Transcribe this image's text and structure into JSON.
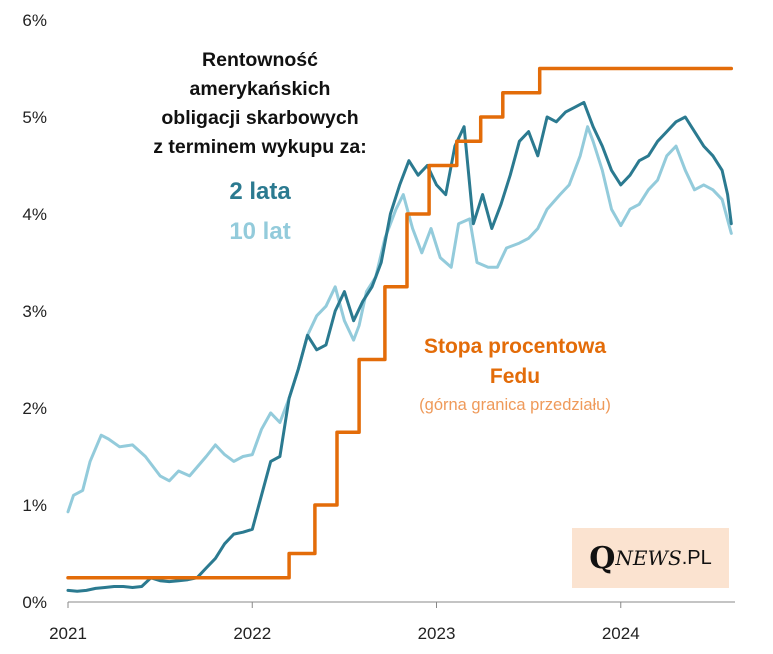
{
  "chart_data": {
    "type": "line",
    "title": "Rentowność amerykańskich obligacji skarbowych z terminem wykupu za:",
    "title_lines": [
      "Rentowność",
      "amerykańskich",
      "obligacji skarbowych",
      "z terminem wykupu za:"
    ],
    "xlabel": "",
    "ylabel": "",
    "xlim": [
      2021.0,
      2024.62
    ],
    "ylim": [
      0,
      6
    ],
    "x_ticks": [
      2021,
      2022,
      2023,
      2024
    ],
    "x_tick_labels": [
      "2021",
      "2022",
      "2023",
      "2024"
    ],
    "y_ticks": [
      0,
      1,
      2,
      3,
      4,
      5,
      6
    ],
    "y_tick_labels": [
      "0%",
      "1%",
      "2%",
      "3%",
      "4%",
      "5%",
      "6%"
    ],
    "grid": false,
    "series": [
      {
        "name": "10 lat",
        "label": "10 lat",
        "color": "#93cbdb",
        "x": [
          2021.0,
          2021.03,
          2021.08,
          2021.12,
          2021.18,
          2021.22,
          2021.28,
          2021.35,
          2021.42,
          2021.5,
          2021.55,
          2021.6,
          2021.66,
          2021.75,
          2021.8,
          2021.85,
          2021.9,
          2021.95,
          2022.0,
          2022.05,
          2022.1,
          2022.15,
          2022.2,
          2022.25,
          2022.3,
          2022.35,
          2022.4,
          2022.45,
          2022.5,
          2022.55,
          2022.58,
          2022.62,
          2022.67,
          2022.72,
          2022.78,
          2022.82,
          2022.87,
          2022.92,
          2022.97,
          2023.02,
          2023.08,
          2023.12,
          2023.18,
          2023.22,
          2023.28,
          2023.33,
          2023.38,
          2023.45,
          2023.5,
          2023.55,
          2023.6,
          2023.67,
          2023.72,
          2023.78,
          2023.82,
          2023.85,
          2023.9,
          2023.95,
          2024.0,
          2024.05,
          2024.1,
          2024.15,
          2024.2,
          2024.25,
          2024.3,
          2024.35,
          2024.4,
          2024.45,
          2024.5,
          2024.55,
          2024.6
        ],
        "values": [
          0.93,
          1.1,
          1.15,
          1.45,
          1.72,
          1.68,
          1.6,
          1.62,
          1.5,
          1.3,
          1.25,
          1.35,
          1.3,
          1.5,
          1.62,
          1.52,
          1.45,
          1.5,
          1.52,
          1.78,
          1.95,
          1.85,
          2.1,
          2.4,
          2.75,
          2.95,
          3.05,
          3.25,
          2.9,
          2.7,
          2.85,
          3.2,
          3.35,
          3.75,
          4.05,
          4.2,
          3.85,
          3.6,
          3.85,
          3.55,
          3.45,
          3.9,
          3.95,
          3.5,
          3.45,
          3.45,
          3.65,
          3.7,
          3.75,
          3.85,
          4.05,
          4.2,
          4.3,
          4.6,
          4.9,
          4.75,
          4.45,
          4.05,
          3.88,
          4.05,
          4.1,
          4.25,
          4.35,
          4.6,
          4.7,
          4.45,
          4.25,
          4.3,
          4.25,
          4.15,
          3.8
        ]
      },
      {
        "name": "2 lata",
        "label": "2 lata",
        "color": "#2b7a90",
        "x": [
          2021.0,
          2021.05,
          2021.1,
          2021.15,
          2021.2,
          2021.25,
          2021.3,
          2021.35,
          2021.4,
          2021.45,
          2021.5,
          2021.55,
          2021.6,
          2021.65,
          2021.7,
          2021.75,
          2021.8,
          2021.85,
          2021.9,
          2021.95,
          2022.0,
          2022.05,
          2022.1,
          2022.15,
          2022.2,
          2022.25,
          2022.3,
          2022.35,
          2022.4,
          2022.45,
          2022.5,
          2022.55,
          2022.6,
          2022.65,
          2022.7,
          2022.75,
          2022.8,
          2022.85,
          2022.9,
          2022.95,
          2023.0,
          2023.05,
          2023.1,
          2023.15,
          2023.2,
          2023.25,
          2023.3,
          2023.35,
          2023.4,
          2023.45,
          2023.5,
          2023.55,
          2023.6,
          2023.65,
          2023.7,
          2023.75,
          2023.8,
          2023.85,
          2023.9,
          2023.95,
          2024.0,
          2024.05,
          2024.1,
          2024.15,
          2024.2,
          2024.25,
          2024.3,
          2024.35,
          2024.4,
          2024.45,
          2024.5,
          2024.55,
          2024.58,
          2024.6
        ],
        "values": [
          0.12,
          0.11,
          0.12,
          0.14,
          0.15,
          0.16,
          0.16,
          0.15,
          0.16,
          0.25,
          0.22,
          0.21,
          0.22,
          0.23,
          0.25,
          0.35,
          0.45,
          0.6,
          0.7,
          0.72,
          0.75,
          1.1,
          1.45,
          1.5,
          2.1,
          2.4,
          2.75,
          2.6,
          2.65,
          3.0,
          3.2,
          2.9,
          3.1,
          3.25,
          3.5,
          4.0,
          4.3,
          4.55,
          4.4,
          4.5,
          4.3,
          4.2,
          4.7,
          4.9,
          3.9,
          4.2,
          3.85,
          4.1,
          4.4,
          4.75,
          4.85,
          4.6,
          5.0,
          4.95,
          5.05,
          5.1,
          5.15,
          4.9,
          4.7,
          4.45,
          4.3,
          4.4,
          4.55,
          4.6,
          4.75,
          4.85,
          4.95,
          5.0,
          4.85,
          4.7,
          4.6,
          4.45,
          4.2,
          3.9
        ]
      },
      {
        "name": "Stopa procentowa Fedu",
        "label": "Stopa procentowa",
        "label_line2": "Fedu",
        "sublabel": "(górna granica przedziału)",
        "color": "#e36c09",
        "step": true,
        "x": [
          2021.0,
          2022.2,
          2022.34,
          2022.46,
          2022.58,
          2022.72,
          2022.84,
          2022.96,
          2023.11,
          2023.24,
          2023.36,
          2023.56,
          2024.6
        ],
        "values": [
          0.25,
          0.5,
          1.0,
          1.75,
          2.5,
          3.25,
          4.0,
          4.5,
          4.75,
          5.0,
          5.25,
          5.5,
          5.5
        ]
      }
    ]
  },
  "logo": {
    "q": "Q",
    "news": "NEWS",
    "pl": ".PL"
  }
}
